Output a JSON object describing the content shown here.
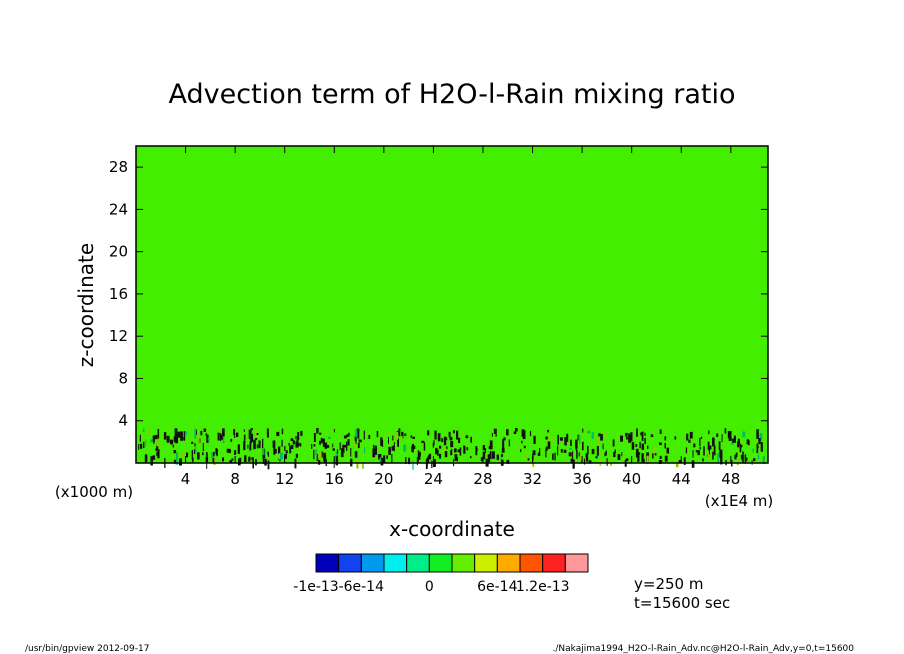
{
  "chart_data": {
    "type": "heatmap",
    "title": "Advection term of H2O-l-Rain mixing ratio",
    "xlabel": "x-coordinate",
    "ylabel": "z-coordinate",
    "x_unit_note": "(x1E4 m)",
    "y_unit_note": "(x1000 m)",
    "xlim": [
      0,
      51
    ],
    "ylim": [
      0,
      30
    ],
    "x_ticks": [
      4,
      8,
      12,
      16,
      20,
      24,
      28,
      32,
      36,
      40,
      44,
      48
    ],
    "y_ticks": [
      4,
      8,
      12,
      16,
      20,
      24,
      28
    ],
    "background_level": "0",
    "field_color": "#44ee00",
    "disturbance_zmax": 3.5,
    "colorbar": {
      "colors": [
        "#0000bb",
        "#1144ee",
        "#0099ee",
        "#00eeee",
        "#00ee88",
        "#11ee22",
        "#66ee00",
        "#ccee00",
        "#ffaa00",
        "#ff5500",
        "#ff2222",
        "#ff9999"
      ],
      "labels": [
        "-1e-13",
        "-6e-14",
        "0",
        "6e-14",
        "1.2e-13"
      ],
      "label_positions": [
        0,
        2,
        5,
        8,
        10
      ]
    },
    "annotations": [
      "y=250 m",
      "t=15600 sec"
    ]
  },
  "footer": {
    "left": "/usr/bin/gpview   2012-09-17",
    "right": "./Nakajima1994_H2O-l-Rain_Adv.nc@H2O-l-Rain_Adv,y=0,t=15600"
  }
}
